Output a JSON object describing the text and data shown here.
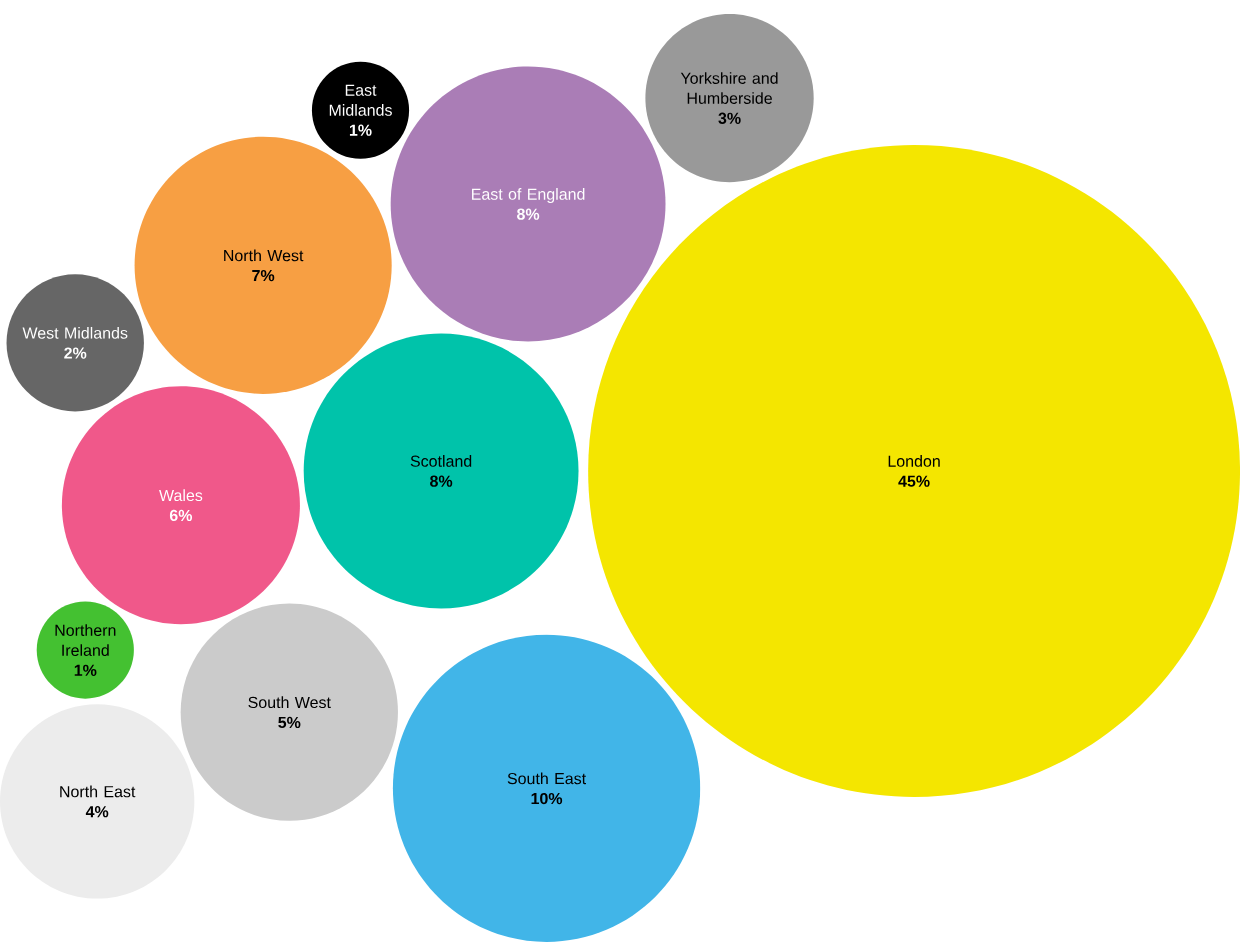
{
  "chart_data": {
    "type": "other",
    "categories": [
      "London",
      "South East",
      "Scotland",
      "East of England",
      "North West",
      "Wales",
      "South West",
      "North East",
      "Yorkshire and Humberside",
      "West Midlands",
      "East Midlands",
      "Northern Ireland"
    ],
    "values": [
      45,
      10,
      8,
      8,
      7,
      6,
      5,
      4,
      3,
      2,
      1,
      1
    ],
    "value_labels": [
      "45%",
      "10%",
      "8%",
      "8%",
      "7%",
      "6%",
      "5%",
      "4%",
      "3%",
      "2%",
      "1%",
      "1%"
    ],
    "colors": [
      "#f4e600",
      "#41b5e8",
      "#00c3aa",
      "#aa7db6",
      "#f79f43",
      "#f0588a",
      "#cbcbcb",
      "#ececec",
      "#999999",
      "#666666",
      "#000000",
      "#44c131"
    ]
  }
}
